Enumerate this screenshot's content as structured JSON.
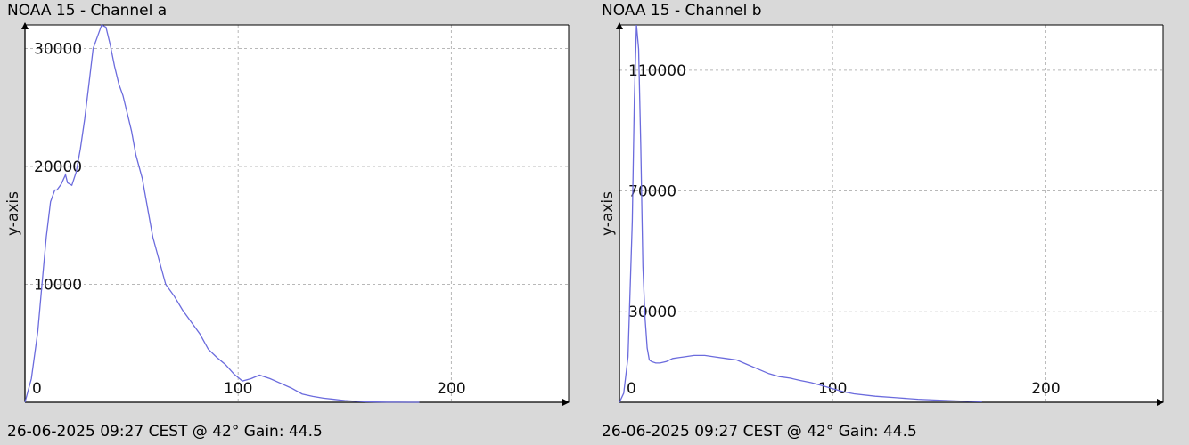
{
  "charts": [
    {
      "title": "NOAA 15 - Channel a",
      "footer": "26-06-2025 09:27 CEST @ 42° Gain: 44.5"
    },
    {
      "title": "NOAA 15 - Channel b",
      "footer": "26-06-2025 09:27 CEST @ 42° Gain: 44.5"
    }
  ],
  "chart_data": [
    {
      "type": "line",
      "title": "NOAA 15 - Channel a",
      "xlabel": "",
      "ylabel": "y-axis",
      "xlim": [
        0,
        255
      ],
      "ylim": [
        0,
        32000
      ],
      "xticks": [
        0,
        100,
        200
      ],
      "yticks": [
        10000,
        20000,
        30000
      ],
      "grid": true,
      "line_color": "#6b6bdd",
      "x": [
        0,
        3,
        6,
        8,
        10,
        12,
        14,
        15,
        17,
        19,
        20,
        22,
        24,
        26,
        28,
        30,
        32,
        34,
        36,
        38,
        40,
        42,
        44,
        46,
        48,
        50,
        52,
        55,
        58,
        60,
        63,
        66,
        70,
        74,
        78,
        82,
        86,
        90,
        94,
        98,
        102,
        106,
        110,
        115,
        120,
        125,
        130,
        135,
        140,
        145,
        150,
        155,
        160,
        165,
        170,
        175,
        180,
        185
      ],
      "y": [
        0,
        2000,
        6000,
        10000,
        14000,
        17000,
        18000,
        18000,
        18500,
        19300,
        18600,
        18400,
        19500,
        21500,
        24000,
        27000,
        30000,
        31000,
        32000,
        31800,
        30300,
        28500,
        27000,
        26000,
        24500,
        23000,
        21000,
        19000,
        16000,
        14000,
        12000,
        10000,
        9000,
        7800,
        6800,
        5800,
        4500,
        3800,
        3200,
        2400,
        1800,
        2000,
        2300,
        2000,
        1600,
        1200,
        700,
        500,
        350,
        250,
        150,
        80,
        40,
        20,
        10,
        5,
        2,
        0
      ],
      "series": [
        {
          "values": "see x/y"
        }
      ]
    },
    {
      "type": "line",
      "title": "NOAA 15 - Channel b",
      "xlabel": "",
      "ylabel": "y-axis",
      "xlim": [
        0,
        255
      ],
      "ylim": [
        0,
        125000
      ],
      "xticks": [
        0,
        100,
        200
      ],
      "yticks": [
        30000,
        70000,
        110000
      ],
      "grid": true,
      "line_color": "#6b6bdd",
      "x": [
        0,
        2,
        4,
        6,
        7,
        8,
        9,
        10,
        11,
        12,
        13,
        14,
        15,
        17,
        19,
        22,
        25,
        30,
        35,
        40,
        45,
        50,
        55,
        60,
        65,
        70,
        75,
        80,
        85,
        90,
        95,
        100,
        105,
        110,
        120,
        130,
        140,
        150,
        160,
        170
      ],
      "y": [
        0,
        3000,
        15000,
        60000,
        100000,
        125000,
        117000,
        85000,
        45000,
        28000,
        18000,
        14000,
        13500,
        13000,
        13000,
        13500,
        14500,
        15000,
        15500,
        15500,
        15000,
        14500,
        14000,
        12500,
        11000,
        9500,
        8500,
        8000,
        7200,
        6500,
        5500,
        4500,
        3500,
        2800,
        2000,
        1500,
        1000,
        700,
        400,
        200
      ]
    }
  ]
}
